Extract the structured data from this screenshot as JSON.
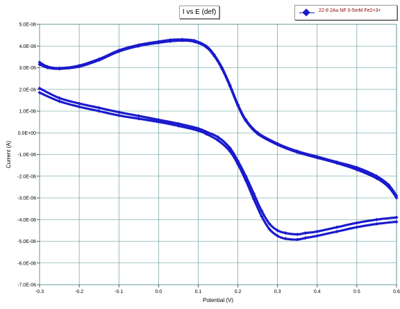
{
  "chart_data": {
    "type": "scatter",
    "title": "I vs E (def)",
    "xlabel": "Potential (V)",
    "ylabel": "Current (A)",
    "xlim": [
      -0.3,
      0.6
    ],
    "ylim": [
      -7e-06,
      5e-06
    ],
    "x_ticks": [
      -0.3,
      -0.2,
      -0.1,
      0.0,
      0.1,
      0.2,
      0.3,
      0.4,
      0.5,
      0.6
    ],
    "x_tick_labels": [
      "-0.3",
      "-0.2",
      "-0.1",
      "0.0",
      "0.1",
      "0.2",
      "0.3",
      "0.4",
      "0.5",
      "0.6"
    ],
    "y_ticks": [
      5e-06,
      4e-06,
      3e-06,
      2e-06,
      1e-06,
      0,
      -1e-06,
      -2e-06,
      -3e-06,
      -4e-06,
      -5e-06,
      -6e-06,
      -7e-06
    ],
    "y_tick_labels": [
      "5.0E-06",
      "4.0E-06",
      "3.0E-06",
      "2.0E-06",
      "1.0E-06",
      "0.0E+00",
      "-1.0E-06",
      "-2.0E-06",
      "-3.0E-06",
      "-4.0E-06",
      "-5.0E-06",
      "-6.0E-06",
      "-7.0E-06"
    ],
    "grid": true,
    "legend_position": "top-right",
    "series": [
      {
        "name": "22-8 2Au NF 0-5mM Fe2+3+",
        "color": "#1a1acc",
        "marker": "diamond",
        "cycles": [
          {
            "anodic": {
              "x": [
                -0.3,
                -0.28,
                -0.25,
                -0.2,
                -0.15,
                -0.1,
                -0.05,
                0.0,
                0.03,
                0.06,
                0.09,
                0.12,
                0.14,
                0.16,
                0.18,
                0.2,
                0.22,
                0.25,
                0.3,
                0.35,
                0.4,
                0.45,
                0.5,
                0.55,
                0.58,
                0.6
              ],
              "y": [
                3.25e-06,
                3.05e-06,
                2.98e-06,
                3.1e-06,
                3.4e-06,
                3.8e-06,
                4.05e-06,
                4.2e-06,
                4.28e-06,
                4.3e-06,
                4.25e-06,
                4e-06,
                3.6e-06,
                3e-06,
                2.2e-06,
                1.3e-06,
                6e-07,
                0.0,
                -5e-07,
                -8.5e-07,
                -1.1e-06,
                -1.35e-06,
                -1.6e-06,
                -2e-06,
                -2.4e-06,
                -2.9e-06
              ]
            },
            "cathodic": {
              "x": [
                0.6,
                0.55,
                0.5,
                0.45,
                0.4,
                0.37,
                0.35,
                0.32,
                0.3,
                0.28,
                0.26,
                0.24,
                0.22,
                0.2,
                0.18,
                0.15,
                0.12,
                0.1,
                0.05,
                0.0,
                -0.05,
                -0.1,
                -0.15,
                -0.2,
                -0.25,
                -0.3
              ],
              "y": [
                -3.9e-06,
                -4e-06,
                -4.15e-06,
                -4.35e-06,
                -4.55e-06,
                -4.62e-06,
                -4.68e-06,
                -4.62e-06,
                -4.5e-06,
                -4.2e-06,
                -3.6e-06,
                -2.8e-06,
                -2e-06,
                -1.3e-06,
                -7e-07,
                -2e-07,
                5e-08,
                2e-07,
                4.2e-07,
                6e-07,
                7.8e-07,
                9.5e-07,
                1.15e-06,
                1.35e-06,
                1.6e-06,
                2.05e-06
              ]
            }
          },
          {
            "anodic": {
              "x": [
                -0.3,
                -0.28,
                -0.25,
                -0.2,
                -0.15,
                -0.1,
                -0.05,
                0.0,
                0.03,
                0.06,
                0.09,
                0.12,
                0.14,
                0.16,
                0.18,
                0.2,
                0.22,
                0.25,
                0.3,
                0.35,
                0.4,
                0.45,
                0.5,
                0.55,
                0.58,
                0.6
              ],
              "y": [
                3.15e-06,
                3e-06,
                2.95e-06,
                3.05e-06,
                3.35e-06,
                3.75e-06,
                4e-06,
                4.15e-06,
                4.22e-06,
                4.25e-06,
                4.2e-06,
                3.95e-06,
                3.55e-06,
                2.95e-06,
                2.15e-06,
                1.25e-06,
                5.5e-07,
                -5e-08,
                -5.5e-07,
                -9e-07,
                -1.15e-06,
                -1.4e-06,
                -1.7e-06,
                -2.1e-06,
                -2.5e-06,
                -3e-06
              ]
            },
            "cathodic": {
              "x": [
                0.6,
                0.55,
                0.5,
                0.45,
                0.4,
                0.37,
                0.35,
                0.32,
                0.3,
                0.28,
                0.26,
                0.24,
                0.22,
                0.2,
                0.18,
                0.15,
                0.12,
                0.1,
                0.05,
                0.0,
                -0.05,
                -0.1,
                -0.15,
                -0.2,
                -0.25,
                -0.3
              ],
              "y": [
                -4.1e-06,
                -4.2e-06,
                -4.35e-06,
                -4.55e-06,
                -4.75e-06,
                -4.85e-06,
                -4.92e-06,
                -4.88e-06,
                -4.75e-06,
                -4.45e-06,
                -3.85e-06,
                -3.05e-06,
                -2.2e-06,
                -1.45e-06,
                -8.5e-07,
                -3.5e-07,
                -5e-08,
                1e-07,
                3.2e-07,
                5e-07,
                6.5e-07,
                8e-07,
                1e-06,
                1.2e-06,
                1.45e-06,
                1.85e-06
              ]
            }
          }
        ]
      }
    ]
  }
}
